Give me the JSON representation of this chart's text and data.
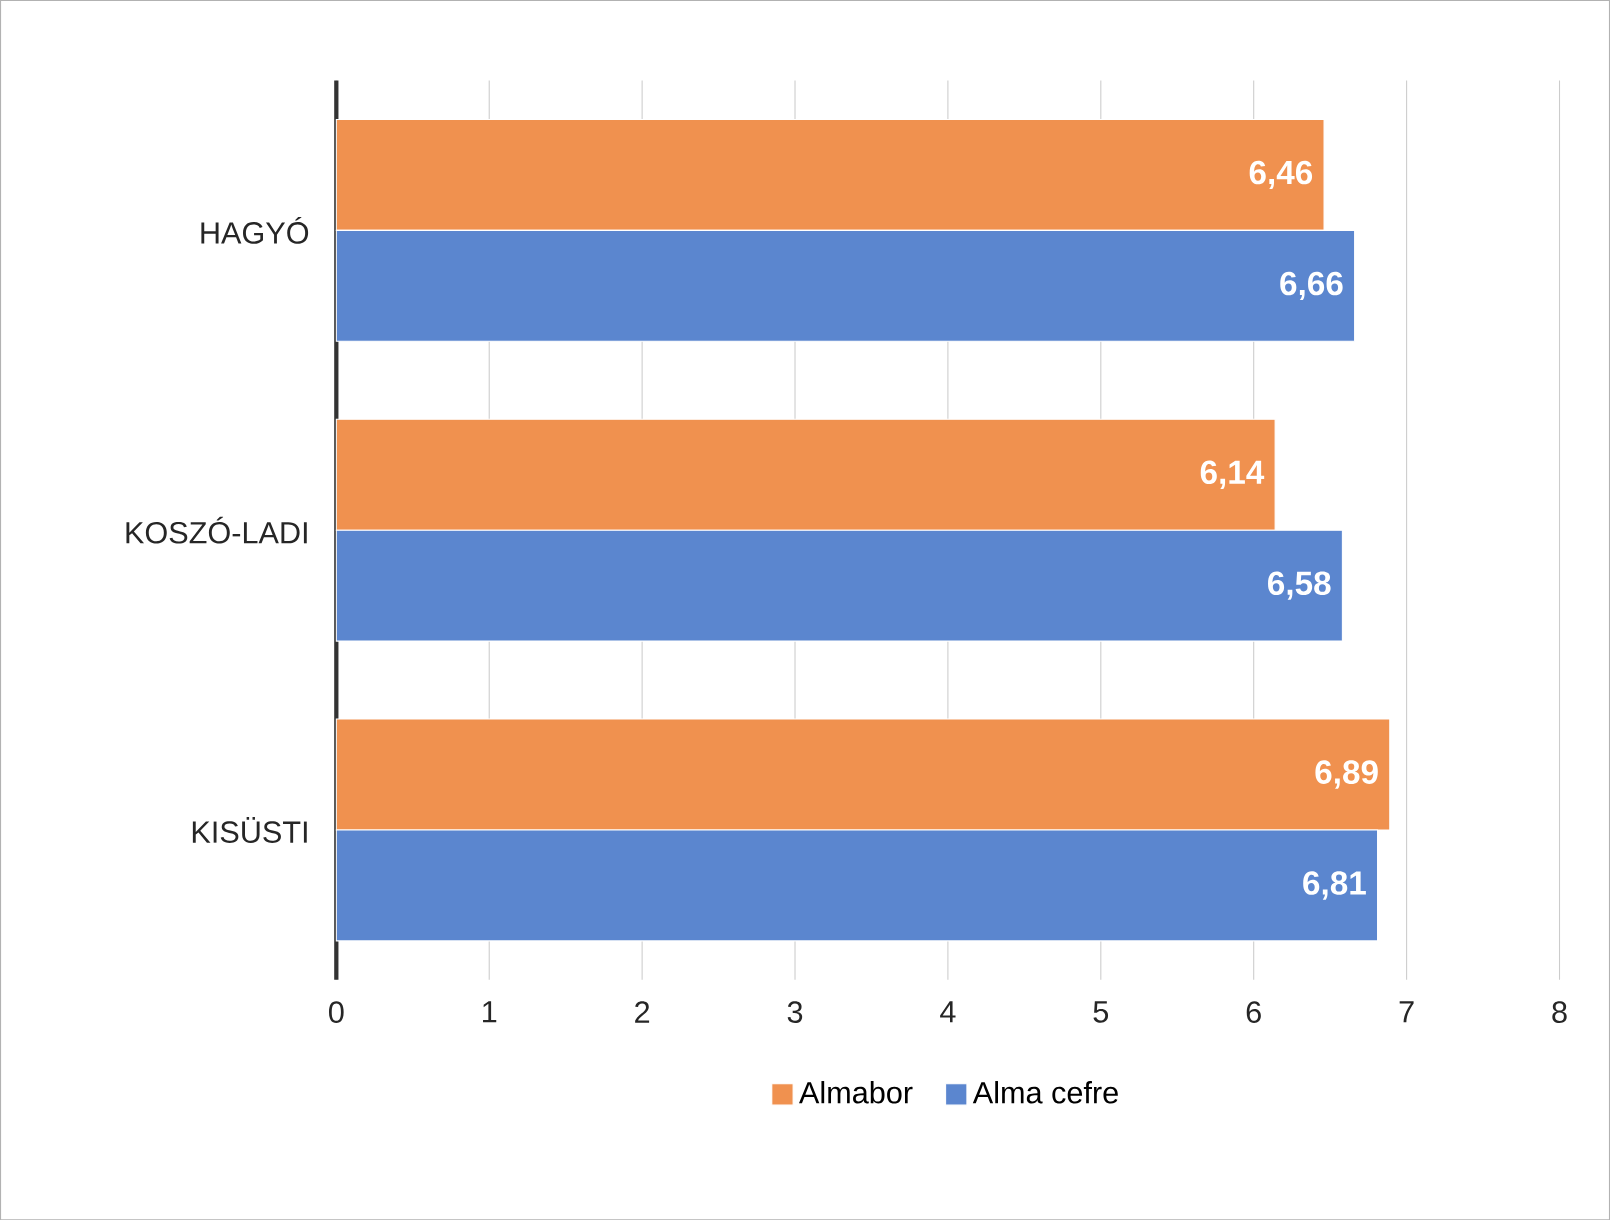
{
  "chart_data": {
    "type": "bar",
    "orientation": "horizontal",
    "categories": [
      "HAGYÓ",
      "KOSZÓ-LADI",
      "KISÜSTI"
    ],
    "series": [
      {
        "name": "Almabor",
        "color": "#f0914f",
        "values": [
          6.46,
          6.14,
          6.89
        ],
        "value_labels": [
          "6,46",
          "6,14",
          "6,89"
        ]
      },
      {
        "name": "Alma cefre",
        "color": "#5b86cf",
        "values": [
          6.66,
          6.58,
          6.81
        ],
        "value_labels": [
          "6,66",
          "6,58",
          "6,81"
        ]
      }
    ],
    "xlim": [
      0,
      8
    ],
    "xticks": [
      0,
      1,
      2,
      3,
      4,
      5,
      6,
      7,
      8
    ],
    "grid": "x",
    "legend": "bottom"
  }
}
